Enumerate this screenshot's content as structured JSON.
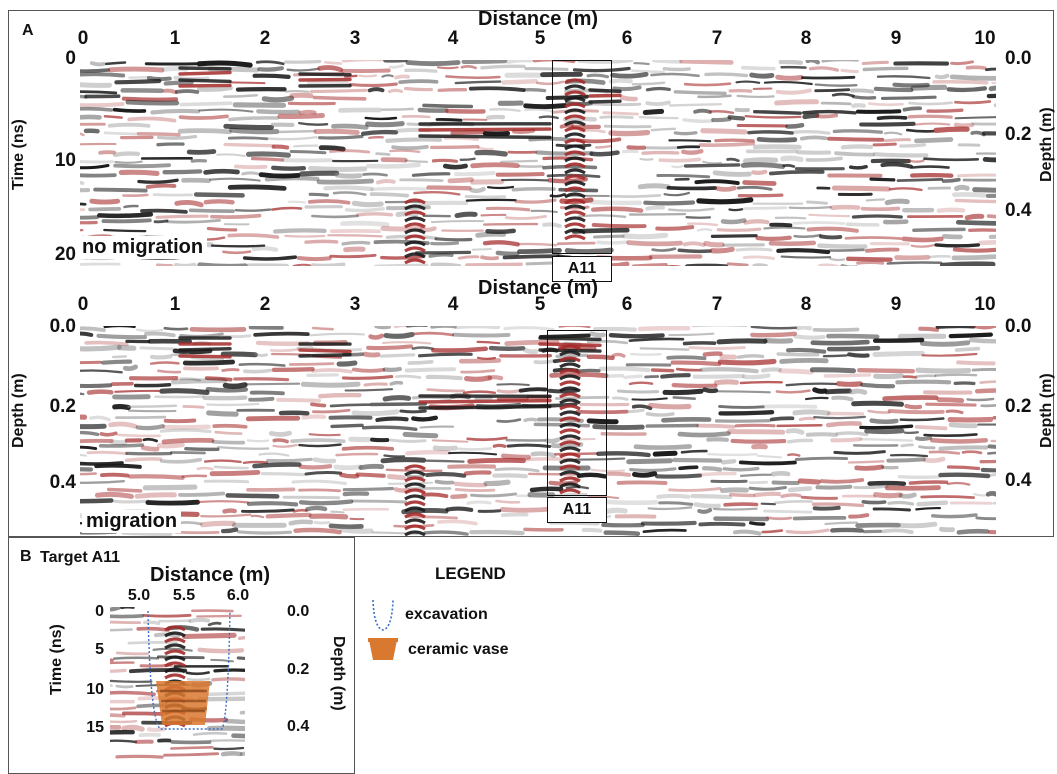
{
  "panelA": {
    "letter": "A",
    "top": {
      "x_title": "Distance (m)",
      "x_ticks": [
        "0",
        "1",
        "2",
        "3",
        "4",
        "5",
        "6",
        "7",
        "8",
        "9",
        "10"
      ],
      "left_ticks": [
        "0",
        "10",
        "20"
      ],
      "left_label": "Time (ns)",
      "right_ticks": [
        "0.0",
        "0.2",
        "0.4"
      ],
      "right_label": "Depth (m)",
      "tag": "no migration",
      "target_label": "A11"
    },
    "bottom": {
      "x_title": "Distance (m)",
      "x_ticks": [
        "0",
        "1",
        "2",
        "3",
        "4",
        "5",
        "6",
        "7",
        "8",
        "9",
        "10"
      ],
      "left_ticks": [
        "0.0",
        "0.2",
        "0.4"
      ],
      "left_label": "Depth (m)",
      "right_ticks": [
        "0.0",
        "0.2",
        "0.4"
      ],
      "right_label": "Depth (m)",
      "tag": "migration",
      "target_label": "A11"
    }
  },
  "panelB": {
    "letter": "B",
    "title": "Target A11",
    "x_title": "Distance (m)",
    "x_ticks": [
      "5.0",
      "5.5",
      "6.0"
    ],
    "left_ticks": [
      "0",
      "5",
      "10",
      "15"
    ],
    "left_label": "Time (ns)",
    "right_ticks": [
      "0.0",
      "0.2",
      "0.4"
    ],
    "right_label": "Depth (m)"
  },
  "legend": {
    "title": "LEGEND",
    "items": [
      {
        "label": "excavation",
        "icon": "excavation-outline-icon",
        "color": "#3a6fc4"
      },
      {
        "label": "ceramic vase",
        "icon": "vase-icon",
        "color": "#d9782f"
      }
    ]
  },
  "colors": {
    "positive": "#1a1a1a",
    "negative": "#a52a2a",
    "vase": "#d9782f"
  }
}
